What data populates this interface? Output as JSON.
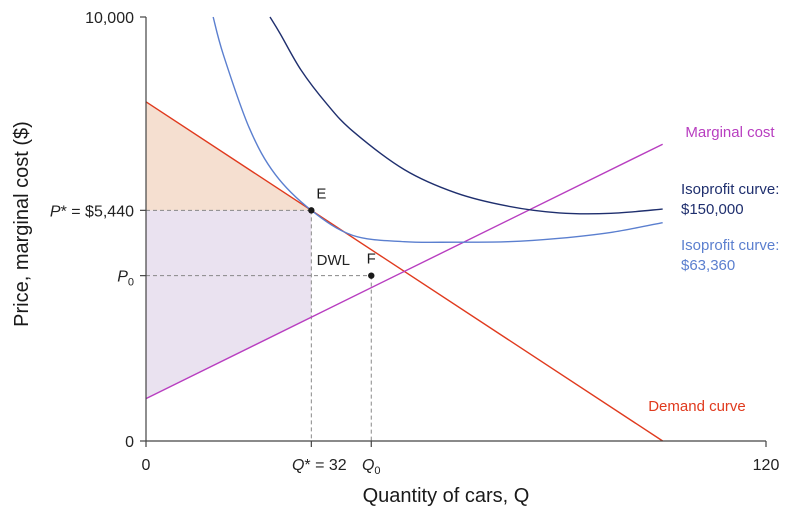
{
  "chart_data": {
    "type": "line",
    "title": "",
    "xlabel": "Quantity of cars, Q",
    "ylabel": "Price, marginal cost ($)",
    "xlim": [
      0,
      120
    ],
    "ylim": [
      0,
      10000
    ],
    "x_ticks": [
      {
        "value": 0,
        "label": "0"
      },
      {
        "value": 120,
        "label": "120"
      }
    ],
    "y_ticks": [
      {
        "value": 0,
        "label": "0"
      },
      {
        "value": 10000,
        "label": "10,000"
      }
    ],
    "grid": false,
    "colors": {
      "demand": "#e03a1e",
      "marginal_cost": "#b83ec0",
      "isoprofit_high": "#1f2f6e",
      "isoprofit_low": "#5b7fcf",
      "dashed": "#888888",
      "surplus_consumer": "#f4dccb",
      "surplus_producer": "#e9e0ef"
    },
    "series": [
      {
        "name": "Demand curve",
        "type": "line",
        "x": [
          0,
          100
        ],
        "y": [
          8000,
          0
        ]
      },
      {
        "name": "Marginal cost",
        "type": "line",
        "x": [
          0,
          100
        ],
        "y": [
          1000,
          7000
        ]
      },
      {
        "name": "Isoprofit curve: $150,000",
        "type": "isoprofit",
        "profit": 150000,
        "x": [
          24,
          26,
          30,
          35,
          40,
          50,
          60,
          70,
          80,
          90,
          100
        ],
        "y": [
          10000,
          9600,
          8750,
          7950,
          7310,
          6400,
          5850,
          5540,
          5380,
          5370,
          5470
        ]
      },
      {
        "name": "Isoprofit curve: $63,360",
        "type": "isoprofit",
        "profit": 63360,
        "x": [
          13,
          15,
          20,
          25,
          32,
          40,
          50,
          60,
          70,
          80,
          90,
          100
        ],
        "y": [
          10000,
          9100,
          7380,
          6290,
          5440,
          4850,
          4700,
          4690,
          4700,
          4780,
          4920,
          5150
        ]
      }
    ],
    "points": [
      {
        "label": "E",
        "x": 32,
        "y": 5440
      },
      {
        "label": "F",
        "x": 43.6,
        "y": 3900
      }
    ],
    "annotations": {
      "p_star": "P* = $5,440",
      "p_zero": "P0",
      "q_star": "Q* = 32",
      "q_zero": "Q0",
      "dwl": "DWL"
    },
    "labels": {
      "demand": "Demand curve",
      "marginal_cost": "Marginal cost",
      "iso_high_1": "Isoprofit curve:",
      "iso_high_2": "$150,000",
      "iso_low_1": "Isoprofit curve:",
      "iso_low_2": "$63,360"
    }
  }
}
